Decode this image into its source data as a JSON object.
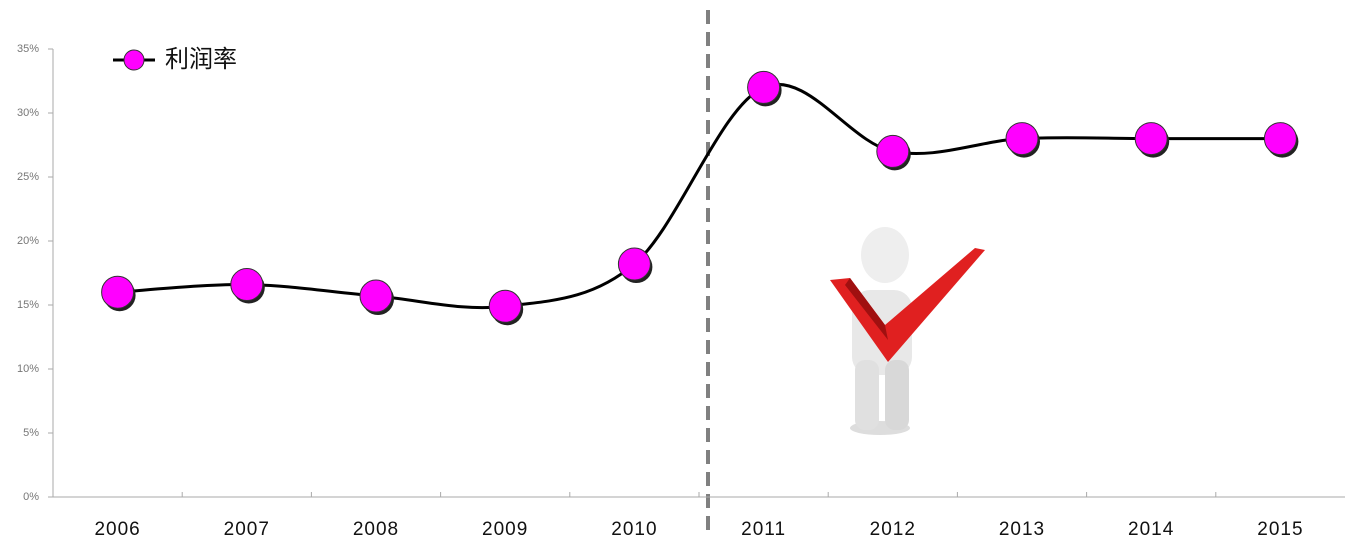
{
  "chart_data": {
    "type": "line",
    "categories": [
      "2006",
      "2007",
      "2008",
      "2009",
      "2010",
      "2011",
      "2012",
      "2013",
      "2014",
      "2015"
    ],
    "series": [
      {
        "name": "利润率",
        "color": "#ff00ff",
        "values": [
          16,
          16.6,
          15.7,
          14.9,
          18.2,
          32,
          27,
          28,
          28,
          28
        ]
      }
    ],
    "ylim": [
      0,
      35
    ],
    "yticks": [
      {
        "value": 0,
        "label": "0%"
      },
      {
        "value": 5,
        "label": "5%"
      },
      {
        "value": 10,
        "label": "10%"
      },
      {
        "value": 15,
        "label": "15%"
      },
      {
        "value": 20,
        "label": "20%"
      },
      {
        "value": 25,
        "label": "25%"
      },
      {
        "value": 30,
        "label": "30%"
      },
      {
        "value": 35,
        "label": "35%"
      }
    ],
    "legend": "top-left"
  }
}
